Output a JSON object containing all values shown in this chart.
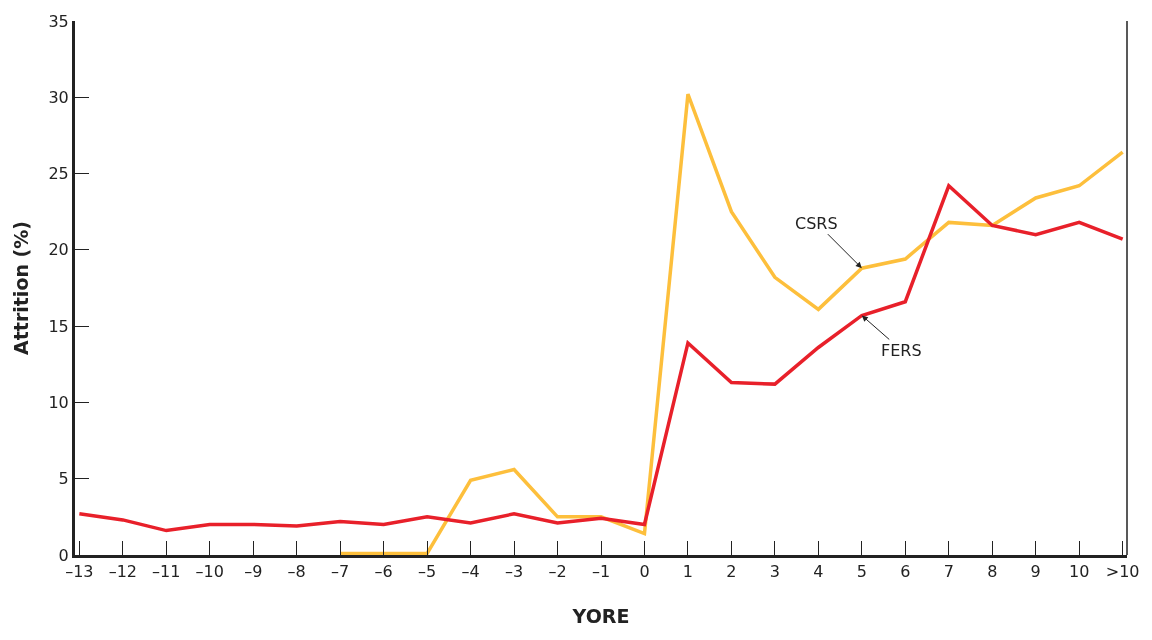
{
  "chart_data": {
    "type": "line",
    "xlabel": "YORE",
    "ylabel": "Attrition (%)",
    "categories": [
      "–13",
      "–12",
      "–11",
      "–10",
      "–9",
      "–8",
      "–7",
      "–6",
      "–5",
      "–4",
      "–3",
      "–2",
      "–1",
      "0",
      "1",
      "2",
      "3",
      "4",
      "5",
      "6",
      "7",
      "8",
      "9",
      "10",
      ">10"
    ],
    "series": [
      {
        "name": "CSRS",
        "color": "#fdbf3c",
        "values": [
          null,
          null,
          null,
          null,
          null,
          null,
          0.1,
          0.1,
          0.1,
          4.9,
          5.6,
          2.5,
          2.5,
          1.4,
          30.2,
          22.5,
          18.2,
          16.1,
          18.8,
          19.4,
          21.8,
          21.6,
          23.4,
          24.2,
          26.4
        ]
      },
      {
        "name": "FERS",
        "color": "#e8202a",
        "values": [
          2.7,
          2.3,
          1.6,
          2.0,
          2.0,
          1.9,
          2.2,
          2.0,
          2.5,
          2.1,
          2.7,
          2.1,
          2.4,
          2.0,
          13.9,
          11.3,
          11.2,
          13.6,
          15.7,
          16.6,
          24.2,
          21.6,
          21.0,
          21.8,
          20.7
        ]
      }
    ],
    "ylim": [
      0,
      35
    ],
    "yticks": [
      0,
      5,
      10,
      15,
      20,
      25,
      30,
      35
    ],
    "legend": false,
    "marker": "none",
    "line_style": "solid"
  }
}
